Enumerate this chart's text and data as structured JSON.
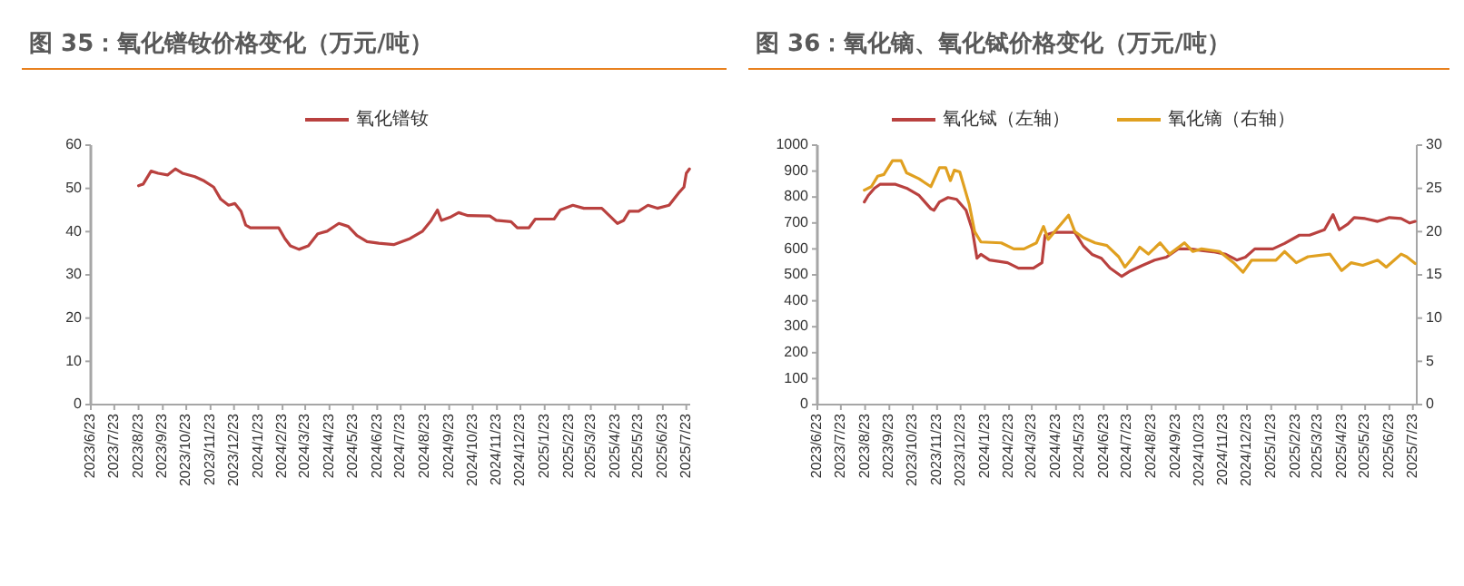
{
  "chart_data": [
    {
      "type": "line",
      "title": "图 35：氧化镨钕价格变化（万元/吨）",
      "legend": "top",
      "grid": false,
      "xlim": [
        "2023-06-23",
        "2025-07-28"
      ],
      "ylim": [
        0,
        60
      ],
      "yticks": [
        0,
        10,
        20,
        30,
        40,
        50,
        60
      ],
      "xticks": [
        {
          "value": "2023-06-23",
          "label": "2023/6/23"
        },
        {
          "value": "2023-07-23",
          "label": "2023/7/23"
        },
        {
          "value": "2023-08-23",
          "label": "2023/8/23"
        },
        {
          "value": "2023-09-23",
          "label": "2023/9/23"
        },
        {
          "value": "2023-10-23",
          "label": "2023/10/23"
        },
        {
          "value": "2023-11-23",
          "label": "2023/11/23"
        },
        {
          "value": "2023-12-23",
          "label": "2023/12/23"
        },
        {
          "value": "2024-01-23",
          "label": "2024/1/23"
        },
        {
          "value": "2024-02-23",
          "label": "2024/2/23"
        },
        {
          "value": "2024-03-23",
          "label": "2024/3/23"
        },
        {
          "value": "2024-04-23",
          "label": "2024/4/23"
        },
        {
          "value": "2024-05-23",
          "label": "2024/5/23"
        },
        {
          "value": "2024-06-23",
          "label": "2024/6/23"
        },
        {
          "value": "2024-07-23",
          "label": "2024/7/23"
        },
        {
          "value": "2024-08-23",
          "label": "2024/8/23"
        },
        {
          "value": "2024-09-23",
          "label": "2024/9/23"
        },
        {
          "value": "2024-10-23",
          "label": "2024/10/23"
        },
        {
          "value": "2024-11-23",
          "label": "2024/11/23"
        },
        {
          "value": "2024-12-23",
          "label": "2024/12/23"
        },
        {
          "value": "2025-01-23",
          "label": "2025/1/23"
        },
        {
          "value": "2025-02-23",
          "label": "2025/2/23"
        },
        {
          "value": "2025-03-23",
          "label": "2025/3/23"
        },
        {
          "value": "2025-04-23",
          "label": "2025/4/23"
        },
        {
          "value": "2025-05-23",
          "label": "2025/5/23"
        },
        {
          "value": "2025-06-23",
          "label": "2025/6/23"
        },
        {
          "value": "2025-07-23",
          "label": "2025/7/23"
        }
      ],
      "series": [
        {
          "name": "氧化镨钕",
          "color": "#b9413f",
          "x": [
            "2023-08-23",
            "2023-08-26",
            "2023-08-29",
            "2023-09-08",
            "2023-09-17",
            "2023-09-29",
            "2023-10-09",
            "2023-10-18",
            "2023-11-03",
            "2023-11-15",
            "2023-11-27",
            "2023-12-06",
            "2023-12-16",
            "2023-12-24",
            "2024-01-01",
            "2024-01-07",
            "2024-01-13",
            "2024-02-18",
            "2024-02-26",
            "2024-03-04",
            "2024-03-15",
            "2024-03-27",
            "2024-04-08",
            "2024-04-20",
            "2024-05-05",
            "2024-05-17",
            "2024-05-28",
            "2024-06-10",
            "2024-06-25",
            "2024-07-14",
            "2024-08-04",
            "2024-08-20",
            "2024-08-31",
            "2024-09-08",
            "2024-09-13",
            "2024-09-24",
            "2024-10-05",
            "2024-10-17",
            "2024-11-14",
            "2024-11-22",
            "2024-12-11",
            "2024-12-19",
            "2025-01-03",
            "2025-01-11",
            "2025-02-04",
            "2025-02-12",
            "2025-02-28",
            "2025-03-14",
            "2025-04-06",
            "2025-04-18",
            "2025-04-26",
            "2025-05-04",
            "2025-05-11",
            "2025-05-23",
            "2025-06-04",
            "2025-06-16",
            "2025-07-01",
            "2025-07-13",
            "2025-07-20",
            "2025-07-23",
            "2025-07-27"
          ],
          "values": [
            50.6,
            50.8,
            51,
            54,
            53.5,
            53.1,
            54.5,
            53.5,
            52.7,
            51.7,
            50.3,
            47.5,
            46.1,
            46.5,
            44.7,
            41.5,
            40.9,
            40.9,
            38.4,
            36.7,
            35.9,
            36.7,
            39.5,
            40.1,
            41.9,
            41.2,
            39.1,
            37.7,
            37.3,
            37,
            38.4,
            40.1,
            42.6,
            45,
            42.6,
            43.3,
            44.4,
            43.7,
            43.6,
            42.6,
            42.3,
            40.9,
            40.9,
            42.9,
            42.9,
            45,
            46.1,
            45.4,
            45.4,
            43.3,
            41.9,
            42.6,
            44.7,
            44.7,
            46.1,
            45.4,
            46.1,
            48.9,
            50.3,
            53.5,
            54.5
          ]
        }
      ]
    },
    {
      "type": "line",
      "title": "图 36：氧化镝、氧化铽价格变化（万元/吨）",
      "legend": "top",
      "grid": false,
      "xlim": [
        "2023-06-23",
        "2025-07-28"
      ],
      "ylim": [
        0,
        1000
      ],
      "yticks": [
        0,
        100,
        200,
        300,
        400,
        500,
        600,
        700,
        800,
        900,
        1000
      ],
      "y2lim": [
        0,
        30
      ],
      "y2ticks": [
        0,
        5,
        10,
        15,
        20,
        25,
        30
      ],
      "xticks": [
        {
          "value": "2023-06-23",
          "label": "2023/6/23"
        },
        {
          "value": "2023-07-23",
          "label": "2023/7/23"
        },
        {
          "value": "2023-08-23",
          "label": "2023/8/23"
        },
        {
          "value": "2023-09-23",
          "label": "2023/9/23"
        },
        {
          "value": "2023-10-23",
          "label": "2023/10/23"
        },
        {
          "value": "2023-11-23",
          "label": "2023/11/23"
        },
        {
          "value": "2023-12-23",
          "label": "2023/12/23"
        },
        {
          "value": "2024-01-23",
          "label": "2024/1/23"
        },
        {
          "value": "2024-02-23",
          "label": "2024/2/23"
        },
        {
          "value": "2024-03-23",
          "label": "2024/3/23"
        },
        {
          "value": "2024-04-23",
          "label": "2024/4/23"
        },
        {
          "value": "2024-05-23",
          "label": "2024/5/23"
        },
        {
          "value": "2024-06-23",
          "label": "2024/6/23"
        },
        {
          "value": "2024-07-23",
          "label": "2024/7/23"
        },
        {
          "value": "2024-08-23",
          "label": "2024/8/23"
        },
        {
          "value": "2024-09-23",
          "label": "2024/9/23"
        },
        {
          "value": "2024-10-23",
          "label": "2024/10/23"
        },
        {
          "value": "2024-11-23",
          "label": "2024/11/23"
        },
        {
          "value": "2024-12-23",
          "label": "2024/12/23"
        },
        {
          "value": "2025-01-23",
          "label": "2025/1/23"
        },
        {
          "value": "2025-02-23",
          "label": "2025/2/23"
        },
        {
          "value": "2025-03-23",
          "label": "2025/3/23"
        },
        {
          "value": "2025-04-23",
          "label": "2025/4/23"
        },
        {
          "value": "2025-05-23",
          "label": "2025/5/23"
        },
        {
          "value": "2025-06-23",
          "label": "2025/6/23"
        },
        {
          "value": "2025-07-23",
          "label": "2025/7/23"
        }
      ],
      "series": [
        {
          "name": "氧化铽（左轴）",
          "color": "#b9413f",
          "x": [
            "2023-08-22",
            "2023-08-27",
            "2023-09-04",
            "2023-09-11",
            "2023-10-01",
            "2023-10-15",
            "2023-10-31",
            "2023-11-15",
            "2023-11-19",
            "2023-11-26",
            "2023-12-07",
            "2023-12-18",
            "2023-12-30",
            "2024-01-07",
            "2024-01-13",
            "2024-01-18",
            "2024-01-29",
            "2024-02-21",
            "2024-03-06",
            "2024-03-25",
            "2024-04-05",
            "2024-04-09",
            "2024-04-21",
            "2024-05-06",
            "2024-05-17",
            "2024-05-28",
            "2024-06-08",
            "2024-06-20",
            "2024-07-01",
            "2024-07-16",
            "2024-07-27",
            "2024-08-11",
            "2024-08-27",
            "2024-09-11",
            "2024-09-26",
            "2024-10-11",
            "2024-10-26",
            "2024-11-10",
            "2024-11-26",
            "2024-12-10",
            "2024-12-21",
            "2025-01-02",
            "2025-01-25",
            "2025-02-09",
            "2025-02-28",
            "2025-03-13",
            "2025-04-01",
            "2025-04-12",
            "2025-04-20",
            "2025-05-01",
            "2025-05-09",
            "2025-05-23",
            "2025-06-08",
            "2025-06-23",
            "2025-07-08",
            "2025-07-19",
            "2025-07-26"
          ],
          "values": [
            781,
            806,
            834,
            849,
            849,
            834,
            806,
            755,
            749,
            781,
            798,
            791,
            749,
            674,
            564,
            579,
            557,
            547,
            526,
            526,
            547,
            653,
            664,
            664,
            664,
            611,
            579,
            564,
            526,
            494,
            515,
            536,
            557,
            568,
            600,
            600,
            594,
            589,
            579,
            557,
            568,
            600,
            600,
            621,
            653,
            653,
            674,
            732,
            674,
            696,
            721,
            717,
            706,
            721,
            717,
            700,
            706
          ]
        },
        {
          "name": "氧化镝（右轴）",
          "color": "#e0a020",
          "axis": "y2",
          "x": [
            "2023-08-22",
            "2023-08-31",
            "2023-09-08",
            "2023-09-16",
            "2023-09-27",
            "2023-10-08",
            "2023-10-15",
            "2023-10-31",
            "2023-11-15",
            "2023-11-26",
            "2023-12-04",
            "2023-12-10",
            "2023-12-15",
            "2023-12-22",
            "2024-01-03",
            "2024-01-10",
            "2024-01-18",
            "2024-02-13",
            "2024-02-29",
            "2024-03-13",
            "2024-03-29",
            "2024-04-07",
            "2024-04-13",
            "2024-04-24",
            "2024-05-09",
            "2024-05-17",
            "2024-05-28",
            "2024-06-12",
            "2024-06-27",
            "2024-07-12",
            "2024-07-20",
            "2024-07-31",
            "2024-08-08",
            "2024-08-19",
            "2024-09-03",
            "2024-09-15",
            "2024-10-04",
            "2024-10-15",
            "2024-10-26",
            "2024-11-18",
            "2024-12-06",
            "2024-12-18",
            "2024-12-29",
            "2025-01-29",
            "2025-02-09",
            "2025-02-24",
            "2025-03-11",
            "2025-04-08",
            "2025-04-23",
            "2025-05-05",
            "2025-05-20",
            "2025-06-08",
            "2025-06-19",
            "2025-07-08",
            "2025-07-15",
            "2025-07-26"
          ],
          "values": [
            24.8,
            25.2,
            26.4,
            26.6,
            28.2,
            28.2,
            26.8,
            26.1,
            25.2,
            27.4,
            27.4,
            25.9,
            27.1,
            26.9,
            23.2,
            20.0,
            18.8,
            18.7,
            18.0,
            18.0,
            18.7,
            20.6,
            19.1,
            20.3,
            21.9,
            20.0,
            19.3,
            18.7,
            18.4,
            17.1,
            15.9,
            17.1,
            18.2,
            17.4,
            18.7,
            17.4,
            18.7,
            17.7,
            18.0,
            17.7,
            16.4,
            15.3,
            16.7,
            16.7,
            17.7,
            16.4,
            17.1,
            17.4,
            15.5,
            16.4,
            16.1,
            16.7,
            15.9,
            17.4,
            17.1,
            16.3
          ]
        }
      ]
    }
  ]
}
